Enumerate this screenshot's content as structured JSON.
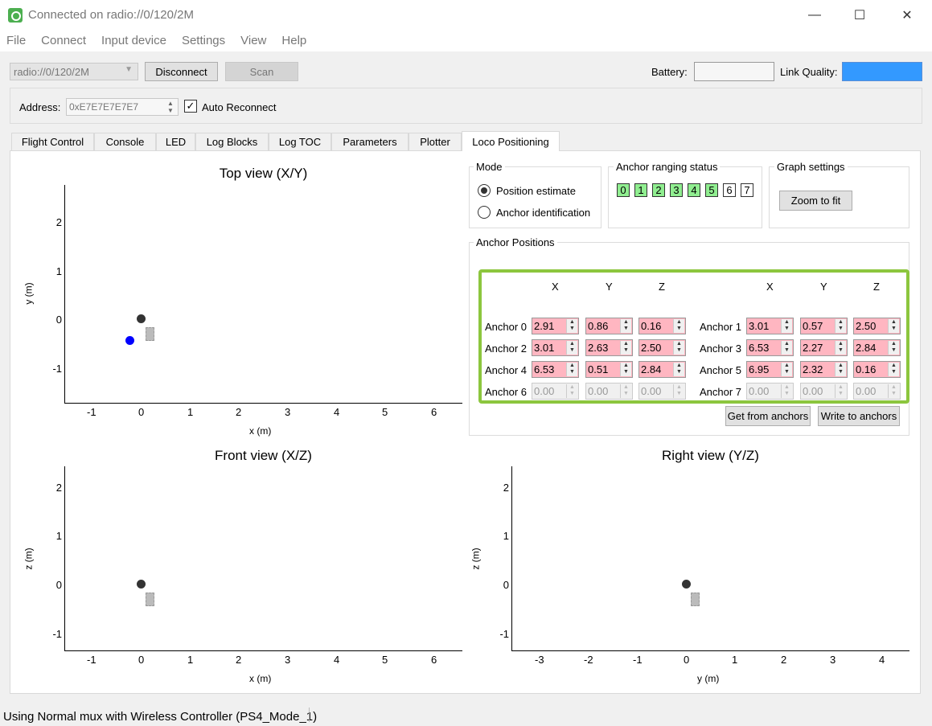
{
  "window": {
    "title": "Connected on radio://0/120/2M",
    "minimize": "—",
    "maximize": "☐",
    "close": "✕"
  },
  "menu": [
    "File",
    "Connect",
    "Input device",
    "Settings",
    "View",
    "Help"
  ],
  "toolbar": {
    "uri": "radio://0/120/2M",
    "disconnect": "Disconnect",
    "scan": "Scan",
    "battery_label": "Battery:",
    "link_quality_label": "Link Quality:",
    "battery_level": 0,
    "link_quality_level": 1.0,
    "link_quality_color": "#3399ff"
  },
  "address": {
    "label": "Address:",
    "value": "0xE7E7E7E7E7",
    "auto_reconnect_label": "Auto Reconnect",
    "auto_reconnect": true
  },
  "tabs": [
    "Flight Control",
    "Console",
    "LED",
    "Log Blocks",
    "Log TOC",
    "Parameters",
    "Plotter",
    "Loco Positioning"
  ],
  "active_tab": "Loco Positioning",
  "plots": {
    "top": {
      "title": "Top view (X/Y)",
      "xlabel": "x (m)",
      "ylabel": "y (m)",
      "xticks": [
        "-1",
        "0",
        "1",
        "2",
        "3",
        "4",
        "5",
        "6"
      ],
      "yticks": [
        "2",
        "1",
        "0",
        "-1"
      ]
    },
    "front": {
      "title": "Front view (X/Z)",
      "xlabel": "x (m)",
      "ylabel": "z (m)",
      "xticks": [
        "-1",
        "0",
        "1",
        "2",
        "3",
        "4",
        "5",
        "6"
      ],
      "yticks": [
        "2",
        "1",
        "0",
        "-1"
      ]
    },
    "right": {
      "title": "Right view (Y/Z)",
      "xlabel": "y (m)",
      "ylabel": "z (m)",
      "xticks": [
        "-3",
        "-2",
        "-1",
        "0",
        "1",
        "2",
        "3",
        "4"
      ],
      "yticks": [
        "2",
        "1",
        "0",
        "-1"
      ]
    },
    "colors": {
      "origin": "#333333",
      "position": "#0000ff",
      "anchors": "#bbbbbb"
    }
  },
  "mode": {
    "title": "Mode",
    "options": [
      "Position estimate",
      "Anchor identification"
    ],
    "selected": 0
  },
  "ranging": {
    "title": "Anchor ranging status",
    "anchors": [
      {
        "id": "0",
        "active": true
      },
      {
        "id": "1",
        "active": true
      },
      {
        "id": "2",
        "active": true
      },
      {
        "id": "3",
        "active": true
      },
      {
        "id": "4",
        "active": true
      },
      {
        "id": "5",
        "active": true
      },
      {
        "id": "6",
        "active": false
      },
      {
        "id": "7",
        "active": false
      }
    ]
  },
  "graph_settings": {
    "title": "Graph settings",
    "zoom_button": "Zoom to fit"
  },
  "anchor_positions": {
    "title": "Anchor Positions",
    "headers": [
      "X",
      "Y",
      "Z"
    ],
    "anchors": [
      {
        "name": "Anchor 0",
        "x": "2.91",
        "y": "0.86",
        "z": "0.16",
        "set": true
      },
      {
        "name": "Anchor 1",
        "x": "3.01",
        "y": "0.57",
        "z": "2.50",
        "set": true
      },
      {
        "name": "Anchor 2",
        "x": "3.01",
        "y": "2.63",
        "z": "2.50",
        "set": true
      },
      {
        "name": "Anchor 3",
        "x": "6.53",
        "y": "2.27",
        "z": "2.84",
        "set": true
      },
      {
        "name": "Anchor 4",
        "x": "6.53",
        "y": "0.51",
        "z": "2.84",
        "set": true
      },
      {
        "name": "Anchor 5",
        "x": "6.95",
        "y": "2.32",
        "z": "0.16",
        "set": true
      },
      {
        "name": "Anchor 6",
        "x": "0.00",
        "y": "0.00",
        "z": "0.00",
        "set": false
      },
      {
        "name": "Anchor 7",
        "x": "0.00",
        "y": "0.00",
        "z": "0.00",
        "set": false
      }
    ],
    "get_button": "Get from anchors",
    "write_button": "Write to anchors",
    "highlight_color": "#8cc63e"
  },
  "status": {
    "text": "Using Normal mux with Wireless Controller (PS4_Mode_1)"
  }
}
